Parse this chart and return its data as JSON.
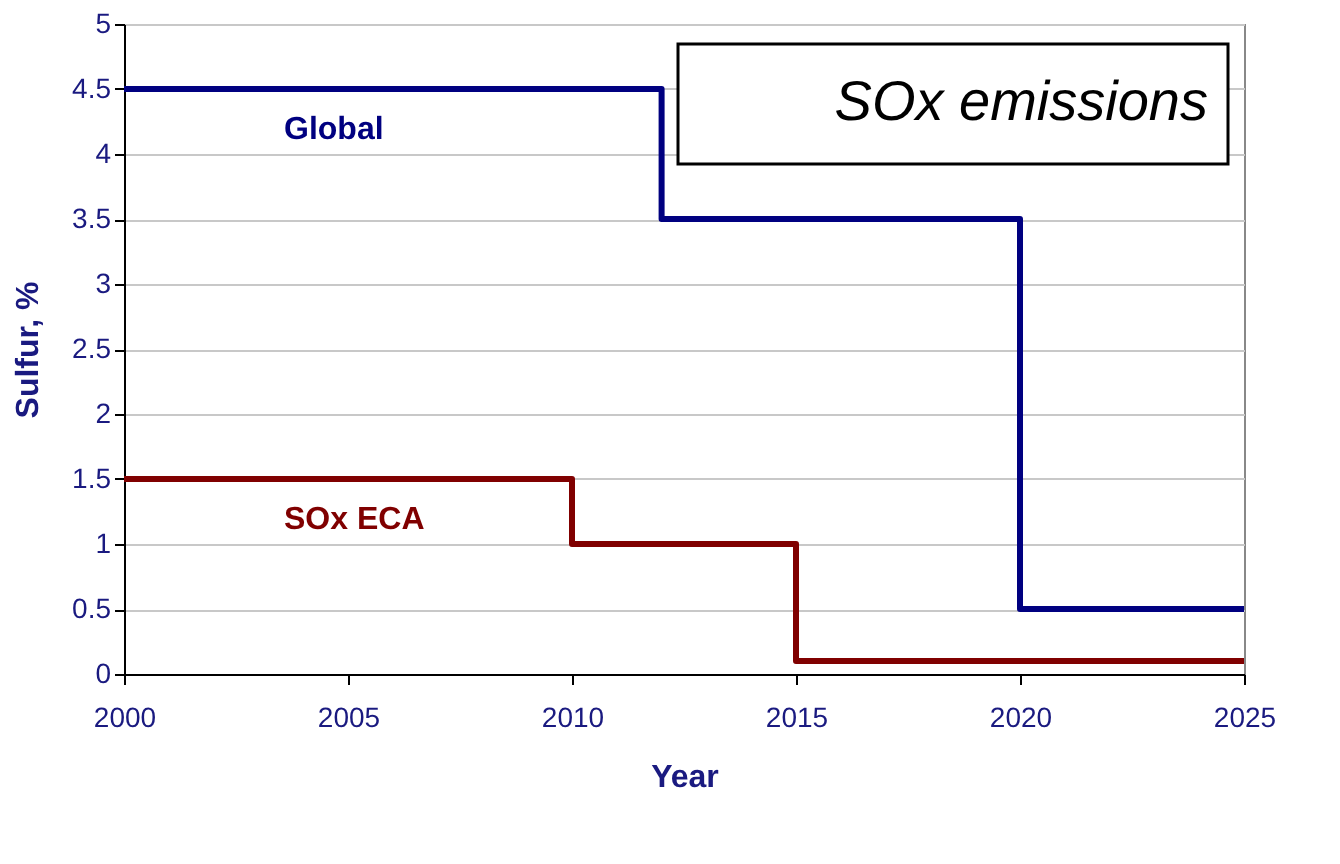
{
  "chart_data": {
    "type": "step",
    "title": "SOx emissions",
    "xlabel": "Year",
    "ylabel": "Sulfur, %",
    "series": [
      {
        "name": "Global",
        "color": "#000080",
        "x": [
          2000,
          2012,
          2020,
          2025
        ],
        "values": [
          4.5,
          3.5,
          0.5,
          0.5
        ]
      },
      {
        "name": "SOx ECA",
        "color": "#800000",
        "x": [
          2000,
          2010,
          2015,
          2025
        ],
        "values": [
          1.5,
          1.0,
          0.1,
          0.1
        ]
      }
    ],
    "xlim": [
      2000,
      2025
    ],
    "xticks": [
      2000,
      2005,
      2010,
      2015,
      2020,
      2025
    ],
    "ylim": [
      0,
      5
    ],
    "yticks": [
      0,
      0.5,
      1,
      1.5,
      2,
      2.5,
      3,
      3.5,
      4,
      4.5,
      5
    ],
    "grid": "y",
    "legend": false,
    "marker": "none",
    "line_style": "solid"
  }
}
